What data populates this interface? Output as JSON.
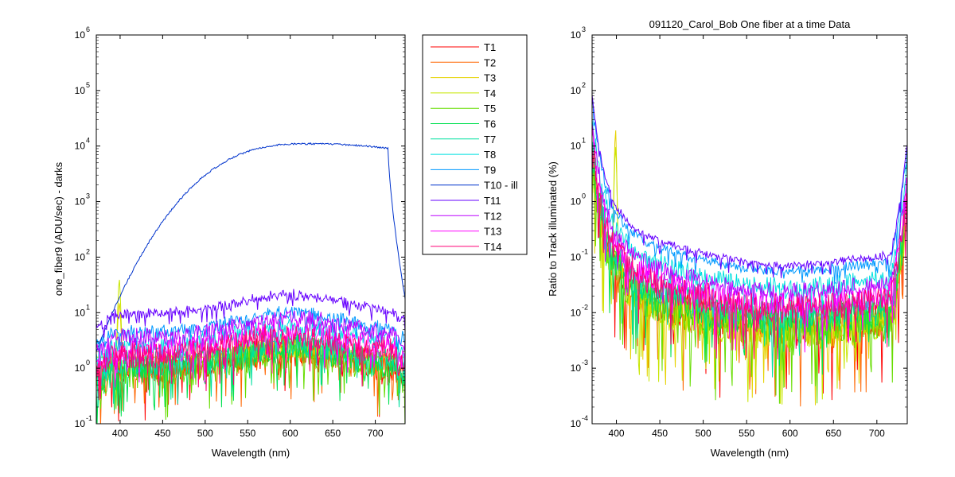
{
  "window": {
    "title": "091120_Carol_Bob  One fiber at a time Data"
  },
  "chart_data": [
    {
      "type": "line",
      "title": "",
      "xlabel": "Wavelength (nm)",
      "ylabel": "one_fiber9  (ADU/sec) - darks",
      "xlim": [
        372,
        735
      ],
      "ylim_log10": [
        -1,
        6
      ],
      "yscale": "log",
      "x_ticks": [
        "400",
        "450",
        "500",
        "550",
        "600",
        "650",
        "700"
      ],
      "x_tick_values": [
        400,
        450,
        500,
        550,
        600,
        650,
        700
      ],
      "y_tick_exponents": [
        "-1",
        "0",
        "1",
        "2",
        "3",
        "4",
        "5",
        "6"
      ],
      "y_tick_base": "10",
      "grid": false,
      "legend": "outside-right",
      "series": [
        {
          "name": "T1",
          "color": "#ff0000",
          "level_log10": 0.25,
          "noise": 0.55
        },
        {
          "name": "T2",
          "color": "#ff6600",
          "level_log10": 0.25,
          "noise": 0.55
        },
        {
          "name": "T3",
          "color": "#e6d200",
          "level_log10": 0.2,
          "noise": 0.55,
          "peak_at": 399,
          "peak_value": 15
        },
        {
          "name": "T4",
          "color": "#c8e600",
          "level_log10": 0.2,
          "noise": 0.55,
          "peak_at": 399,
          "peak_value": 40
        },
        {
          "name": "T5",
          "color": "#66dd00",
          "level_log10": 0.2,
          "noise": 0.55
        },
        {
          "name": "T6",
          "color": "#00e050",
          "level_log10": 0.25,
          "noise": 0.5
        },
        {
          "name": "T7",
          "color": "#00e0a0",
          "level_log10": 0.3,
          "noise": 0.45
        },
        {
          "name": "T8",
          "color": "#00e0e0",
          "level_log10": 0.55,
          "noise": 0.3
        },
        {
          "name": "T9",
          "color": "#0099ff",
          "level_log10": 0.75,
          "noise": 0.2
        },
        {
          "name": "T10 - ill",
          "color": "#0033cc",
          "peak_value": 11000,
          "peak_at": 620,
          "edge_drop_at": 715,
          "end_value": 18
        },
        {
          "name": "T11",
          "color": "#6600ff",
          "level_log10": 1.05,
          "noise": 0.15
        },
        {
          "name": "T12",
          "color": "#bb00ff",
          "level_log10": 0.7,
          "noise": 0.3
        },
        {
          "name": "T13",
          "color": "#ff00ff",
          "level_log10": 0.5,
          "noise": 0.4
        },
        {
          "name": "T14",
          "color": "#ff0077",
          "level_log10": 0.45,
          "noise": 0.45
        }
      ]
    },
    {
      "type": "line",
      "title": "091120_Carol_Bob  One fiber at a time Data",
      "xlabel": "Wavelength (nm)",
      "ylabel": "Ratio to Track illuminated (%)",
      "xlim": [
        372,
        735
      ],
      "ylim_log10": [
        -4,
        3
      ],
      "yscale": "log",
      "x_ticks": [
        "400",
        "450",
        "500",
        "550",
        "600",
        "650",
        "700"
      ],
      "x_tick_values": [
        400,
        450,
        500,
        550,
        600,
        650,
        700
      ],
      "y_tick_exponents": [
        "-4",
        "-3",
        "-2",
        "-1",
        "0",
        "1",
        "2",
        "3"
      ],
      "y_tick_base": "10",
      "grid": false,
      "series": [
        {
          "name": "T1",
          "color": "#ff0000",
          "level_log10": -1.65,
          "noise": 0.7
        },
        {
          "name": "T2",
          "color": "#ff6600",
          "level_log10": -1.7,
          "noise": 0.7
        },
        {
          "name": "T3",
          "color": "#e6d200",
          "level_log10": -1.75,
          "noise": 0.7,
          "peak_at": 399,
          "peak_value": 20
        },
        {
          "name": "T4",
          "color": "#c8e600",
          "level_log10": -1.75,
          "noise": 0.7,
          "peak_at": 399,
          "peak_value": 10
        },
        {
          "name": "T5",
          "color": "#66dd00",
          "level_log10": -1.7,
          "noise": 0.7
        },
        {
          "name": "T6",
          "color": "#00e050",
          "level_log10": -1.6,
          "noise": 0.6
        },
        {
          "name": "T7",
          "color": "#00e0a0",
          "level_log10": -1.5,
          "noise": 0.55
        },
        {
          "name": "T8",
          "color": "#00e0e0",
          "level_log10": -1.15,
          "noise": 0.35
        },
        {
          "name": "T9",
          "color": "#0099ff",
          "level_log10": -0.95,
          "noise": 0.15
        },
        {
          "name": "T11",
          "color": "#6600ff",
          "level_log10": -0.85,
          "noise": 0.12
        },
        {
          "name": "T12",
          "color": "#bb00ff",
          "level_log10": -1.25,
          "noise": 0.3
        },
        {
          "name": "T13",
          "color": "#ff00ff",
          "level_log10": -1.4,
          "noise": 0.45
        },
        {
          "name": "T14",
          "color": "#ff0077",
          "level_log10": -1.45,
          "noise": 0.5
        }
      ]
    }
  ]
}
